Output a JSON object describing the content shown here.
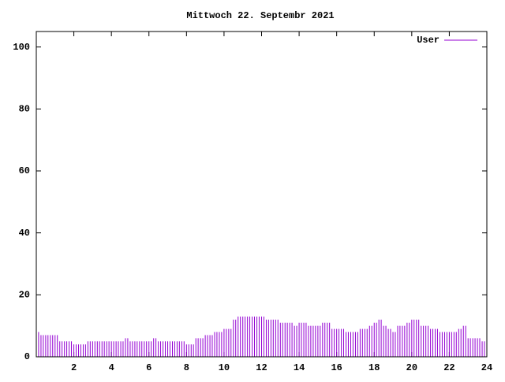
{
  "chart_data": {
    "type": "impulse",
    "title": "Mittwoch 22. Septembr 2021",
    "x": [
      0,
      0.25,
      0.5,
      0.75,
      1,
      1.25,
      1.5,
      1.75,
      2,
      2.25,
      2.5,
      2.75,
      3,
      3.25,
      3.5,
      3.75,
      4,
      4.25,
      4.5,
      4.75,
      5,
      5.25,
      5.5,
      5.75,
      6,
      6.25,
      6.5,
      6.75,
      7,
      7.25,
      7.5,
      7.75,
      8,
      8.25,
      8.5,
      8.75,
      9,
      9.25,
      9.5,
      9.75,
      10,
      10.25,
      10.5,
      10.75,
      11,
      11.25,
      11.5,
      11.75,
      12,
      12.25,
      12.5,
      12.75,
      13,
      13.25,
      13.5,
      13.75,
      14,
      14.25,
      14.5,
      14.75,
      15,
      15.25,
      15.5,
      15.75,
      16,
      16.25,
      16.5,
      16.75,
      17,
      17.25,
      17.5,
      17.75,
      18,
      18.25,
      18.5,
      18.75,
      19,
      19.25,
      19.5,
      19.75,
      20,
      20.25,
      20.5,
      20.75,
      21,
      21.25,
      21.5,
      21.75,
      22,
      22.25,
      22.5,
      22.75,
      23,
      23.25,
      23.5,
      23.75
    ],
    "series": [
      {
        "name": "User",
        "color": "#9400d3",
        "values": [
          8,
          7,
          7,
          7,
          7,
          5,
          5,
          5,
          4,
          4,
          4,
          5,
          5,
          5,
          5,
          5,
          5,
          5,
          5,
          6,
          5,
          5,
          5,
          5,
          5,
          6,
          5,
          5,
          5,
          5,
          5,
          5,
          4,
          4,
          6,
          6,
          7,
          7,
          8,
          8,
          9,
          9,
          12,
          13,
          13,
          13,
          13,
          13,
          13,
          12,
          12,
          12,
          11,
          11,
          11,
          10,
          11,
          11,
          10,
          10,
          10,
          11,
          11,
          9,
          9,
          9,
          8,
          8,
          8,
          9,
          9,
          10,
          11,
          12,
          10,
          9,
          8,
          10,
          10,
          11,
          12,
          12,
          10,
          10,
          9,
          9,
          8,
          8,
          8,
          8,
          9,
          10,
          6,
          6,
          6,
          5
        ]
      }
    ],
    "xlim": [
      0,
      24
    ],
    "xticks": [
      2,
      4,
      6,
      8,
      10,
      12,
      14,
      16,
      18,
      20,
      22,
      24
    ],
    "ylim": [
      0,
      105
    ],
    "yticks": [
      0,
      20,
      40,
      60,
      80,
      100
    ],
    "legend": "top-right"
  }
}
